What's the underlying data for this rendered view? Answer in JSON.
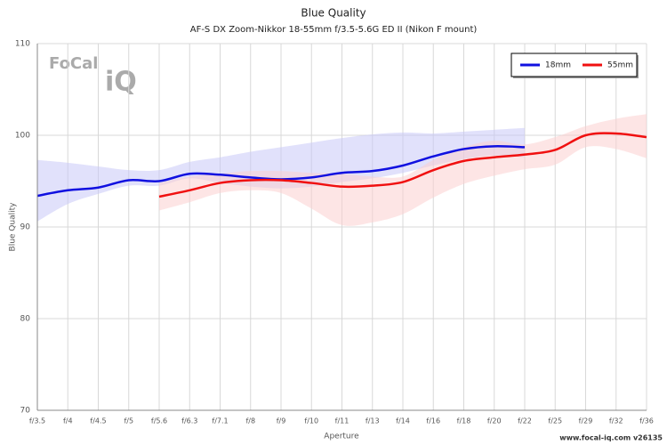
{
  "chart_data": {
    "type": "line",
    "title": "Blue Quality",
    "subtitle": "AF-S DX Zoom-Nikkor 18-55mm f/3.5-5.6G ED II (Nikon F mount)",
    "x_label": "Aperture",
    "y_label": "Blue Quality",
    "logo": [
      "FoCal",
      "iQ"
    ],
    "footer": "www.focal-iq.com  v26135",
    "categories": [
      "f/3.5",
      "f/4",
      "f/4.5",
      "f/5",
      "f/5.6",
      "f/6.3",
      "f/7.1",
      "f/8",
      "f/9",
      "f/10",
      "f/11",
      "f/13",
      "f/14",
      "f/16",
      "f/18",
      "f/20",
      "f/22",
      "f/25",
      "f/29",
      "f/32",
      "f/36"
    ],
    "ylim": [
      70,
      110
    ],
    "yticks": [
      70,
      80,
      90,
      100,
      110
    ],
    "grid": true,
    "legend": "top-right",
    "series": [
      {
        "name": "18mm",
        "color": "#1010e0",
        "band_color": "#c8c8f8",
        "values": [
          93.4,
          94.0,
          94.3,
          95.1,
          95.0,
          95.8,
          95.7,
          95.4,
          95.2,
          95.4,
          95.9,
          96.1,
          96.7,
          97.7,
          98.5,
          98.8,
          98.7,
          null,
          null,
          null,
          null
        ],
        "upper": [
          97.3,
          97.0,
          96.6,
          96.2,
          96.2,
          97.1,
          97.6,
          98.2,
          98.7,
          99.2,
          99.7,
          100.1,
          100.3,
          100.2,
          100.4,
          100.6,
          100.8,
          null,
          null,
          null,
          null
        ],
        "lower": [
          90.6,
          92.5,
          93.6,
          94.5,
          94.5,
          95.3,
          94.8,
          94.4,
          94.2,
          94.4,
          94.9,
          95.3,
          95.9,
          96.7,
          97.4,
          97.8,
          97.6,
          null,
          null,
          null,
          null
        ]
      },
      {
        "name": "55mm",
        "color": "#f01010",
        "band_color": "#fcd0d0",
        "values": [
          null,
          null,
          null,
          null,
          93.3,
          94.0,
          94.8,
          95.1,
          95.1,
          94.8,
          94.4,
          94.5,
          94.9,
          96.2,
          97.2,
          97.6,
          97.9,
          98.4,
          100.0,
          100.2,
          99.8
        ],
        "upper": [
          null,
          null,
          null,
          null,
          94.8,
          95.5,
          95.8,
          96.1,
          96.1,
          95.9,
          95.8,
          95.5,
          95.5,
          97.3,
          98.7,
          99.4,
          99.0,
          99.8,
          101.0,
          101.8,
          102.3
        ],
        "lower": [
          null,
          null,
          null,
          null,
          91.8,
          92.7,
          93.7,
          94.0,
          93.7,
          92.0,
          90.2,
          90.5,
          91.4,
          93.2,
          94.7,
          95.6,
          96.3,
          96.8,
          98.7,
          98.5,
          97.5
        ]
      }
    ]
  }
}
